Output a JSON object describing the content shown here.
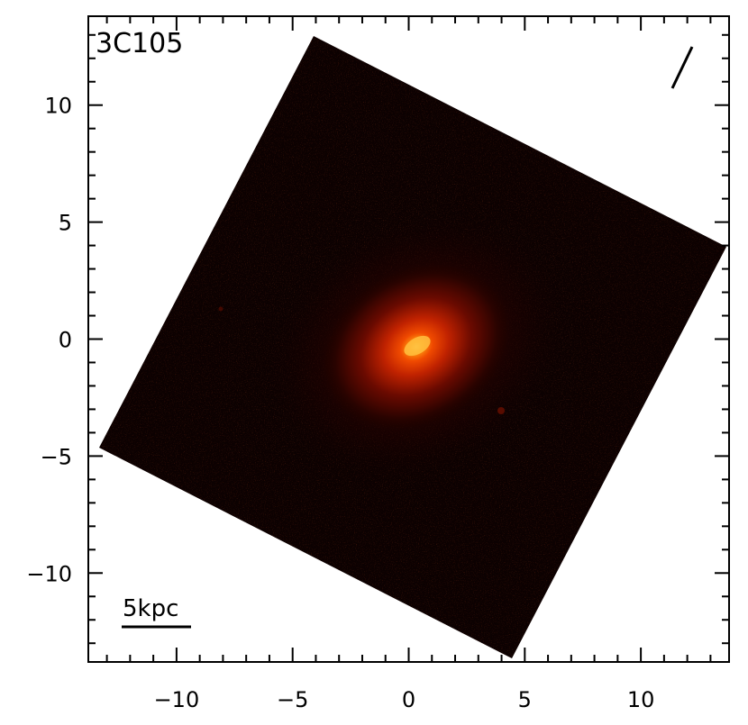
{
  "image": {
    "object_label": "3C105",
    "scalebar_label": "5kpc",
    "axis_range": [
      -13.8,
      13.8
    ],
    "x_ticks": [
      {
        "value": -10,
        "label": "−10"
      },
      {
        "value": -5,
        "label": "−5"
      },
      {
        "value": 0,
        "label": "0"
      },
      {
        "value": 5,
        "label": "5"
      },
      {
        "value": 10,
        "label": "10"
      }
    ],
    "y_ticks": [
      {
        "value": 10,
        "label": "10"
      },
      {
        "value": 5,
        "label": "5"
      },
      {
        "value": 0,
        "label": "0"
      },
      {
        "value": -5,
        "label": "−5"
      },
      {
        "value": -10,
        "label": "−10"
      }
    ],
    "colors": {
      "frame": "#000000",
      "background": "#ffffff",
      "field": "#0c0101",
      "glow_core": "#ffb020",
      "glow_mid": "#e02a00",
      "glow_outer": "#5a0800"
    }
  }
}
